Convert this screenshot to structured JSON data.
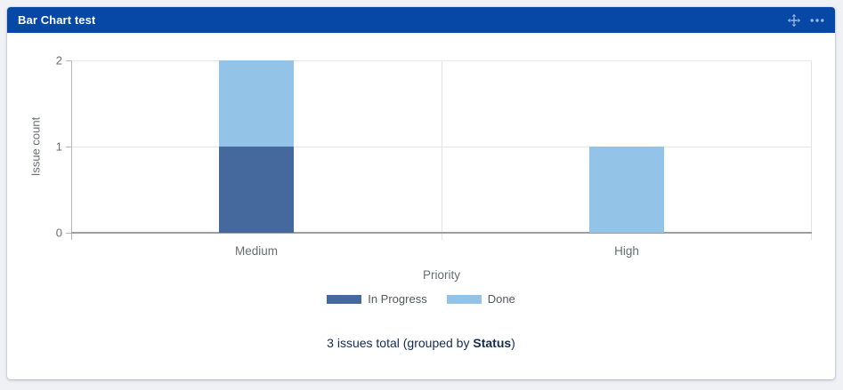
{
  "page": {
    "background": "#f0f1f4"
  },
  "gadget": {
    "title": "Bar Chart test",
    "header_color": "#0747A6",
    "icon_color": "rgba(255,255,255,0.62)",
    "icons": [
      {
        "name": "move-icon"
      },
      {
        "name": "more-options-icon"
      }
    ]
  },
  "chart_data": {
    "type": "bar",
    "stacked": true,
    "categories": [
      "Medium",
      "High"
    ],
    "series": [
      {
        "name": "In Progress",
        "color": "#45699C",
        "values": [
          1,
          0
        ]
      },
      {
        "name": "Done",
        "color": "#93C3E6",
        "values": [
          1,
          1
        ]
      }
    ],
    "title": "",
    "xlabel": "Priority",
    "ylabel": "Issue count",
    "ylim": [
      0,
      2
    ],
    "yticks": [
      0,
      1,
      2
    ],
    "grid": true,
    "bar_width_fraction": 0.2,
    "legend_position": "bottom"
  },
  "footer": {
    "prefix": "3 issues total (grouped by ",
    "group_by": "Status",
    "suffix": ")"
  }
}
